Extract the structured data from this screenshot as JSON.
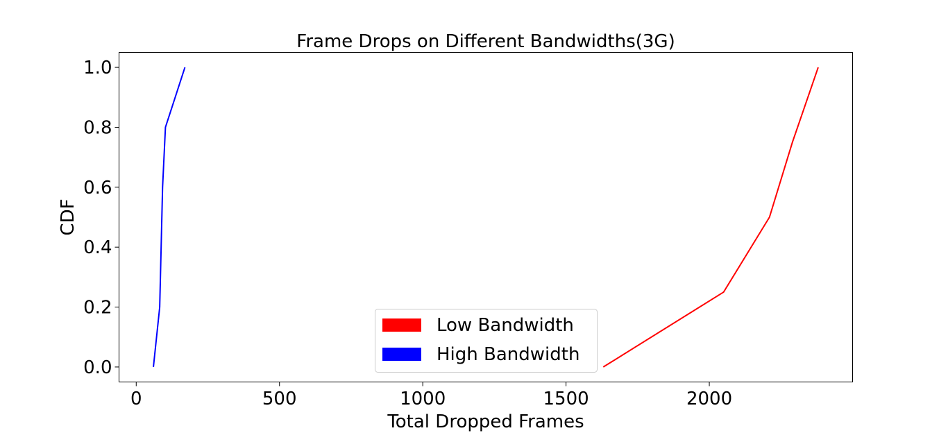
{
  "chart_data": {
    "type": "line",
    "title": "Frame Drops on Different Bandwidths(3G)",
    "xlabel": "Total Dropped Frames",
    "ylabel": "CDF",
    "xlim": [
      -60,
      2500
    ],
    "ylim": [
      -0.05,
      1.05
    ],
    "xticks": [
      0,
      500,
      1000,
      1500,
      2000
    ],
    "xtick_labels": [
      "0",
      "500",
      "1000",
      "1500",
      "2000"
    ],
    "yticks": [
      0.0,
      0.2,
      0.4,
      0.6,
      0.8,
      1.0
    ],
    "ytick_labels": [
      "0.0",
      "0.2",
      "0.4",
      "0.6",
      "0.8",
      "1.0"
    ],
    "grid": false,
    "legend_position": "lower-center",
    "series": [
      {
        "name": "Low Bandwidth",
        "color": "#ff0000",
        "x": [
          1630,
          2050,
          2210,
          2290,
          2380
        ],
        "y": [
          0.0,
          0.25,
          0.5,
          0.75,
          1.0
        ]
      },
      {
        "name": "High Bandwidth",
        "color": "#0000ff",
        "x": [
          60,
          82,
          92,
          102,
          170
        ],
        "y": [
          0.0,
          0.2,
          0.6,
          0.8,
          1.0
        ]
      }
    ]
  }
}
